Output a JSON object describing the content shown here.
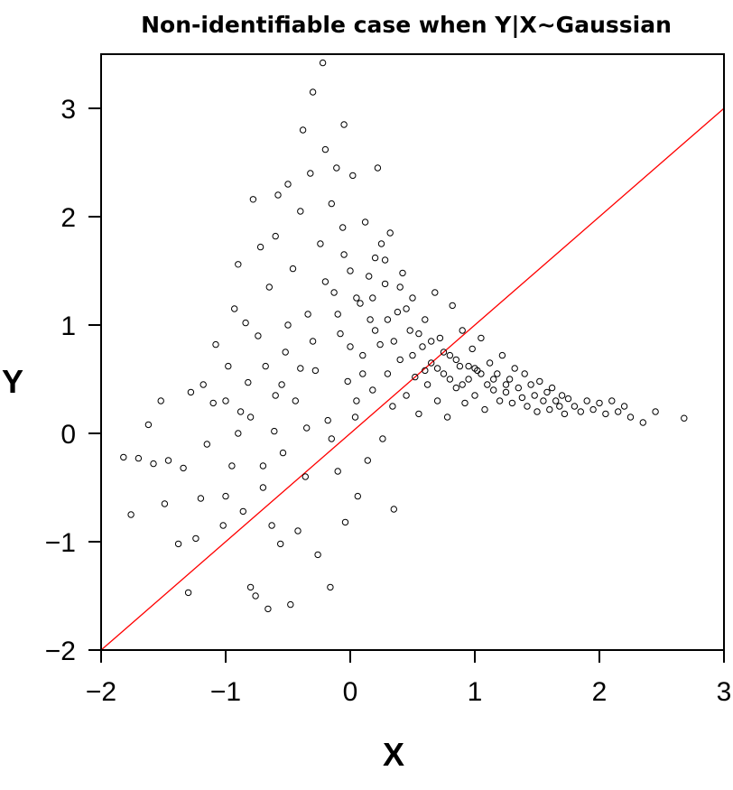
{
  "chart_data": {
    "type": "scatter",
    "title": "Non-identifiable case when Y|X~Gaussian",
    "xlabel": "X",
    "ylabel": "Y",
    "xlim": [
      -2,
      3.0
    ],
    "ylim": [
      -2,
      3.5
    ],
    "x_ticks": [
      -2,
      -1,
      0,
      1,
      2,
      3
    ],
    "y_ticks": [
      -2,
      -1,
      0,
      1,
      2,
      3
    ],
    "x_tick_labels": [
      "−2",
      "−1",
      "0",
      "1",
      "2",
      "3"
    ],
    "y_tick_labels": [
      "−2",
      "−1",
      "0",
      "1",
      "2",
      "3"
    ],
    "grid": false,
    "marker": "open-circle",
    "point_color": "#000000",
    "reference_line": {
      "slope": 1,
      "intercept": 0,
      "color": "#ff0000"
    },
    "series": [
      {
        "points": [
          [
            -1.82,
            -0.22
          ],
          [
            -1.76,
            -0.75
          ],
          [
            -1.7,
            -0.23
          ],
          [
            -1.62,
            0.08
          ],
          [
            -1.58,
            -0.28
          ],
          [
            -1.52,
            0.3
          ],
          [
            -1.49,
            -0.65
          ],
          [
            -1.46,
            -0.25
          ],
          [
            -1.38,
            -1.02
          ],
          [
            -1.34,
            -0.32
          ],
          [
            -1.3,
            -1.47
          ],
          [
            -1.28,
            0.38
          ],
          [
            -1.24,
            -0.97
          ],
          [
            -1.2,
            -0.6
          ],
          [
            -1.18,
            0.45
          ],
          [
            -1.15,
            -0.1
          ],
          [
            -1.1,
            0.28
          ],
          [
            -1.08,
            0.82
          ],
          [
            -1.02,
            -0.85
          ],
          [
            -1.0,
            -0.58
          ],
          [
            -0.98,
            0.62
          ],
          [
            -0.95,
            -0.3
          ],
          [
            -0.93,
            1.15
          ],
          [
            -0.9,
            1.56
          ],
          [
            -0.88,
            0.2
          ],
          [
            -0.86,
            -0.72
          ],
          [
            -0.84,
            1.02
          ],
          [
            -0.82,
            0.47
          ],
          [
            -0.8,
            -1.42
          ],
          [
            -0.78,
            2.16
          ],
          [
            -0.76,
            -1.5
          ],
          [
            -0.74,
            0.9
          ],
          [
            -0.72,
            1.72
          ],
          [
            -0.7,
            -0.5
          ],
          [
            -0.68,
            0.62
          ],
          [
            -0.66,
            -1.62
          ],
          [
            -0.65,
            1.35
          ],
          [
            -0.63,
            -0.85
          ],
          [
            -0.61,
            0.02
          ],
          [
            -0.6,
            1.82
          ],
          [
            -0.58,
            2.2
          ],
          [
            -0.56,
            -1.02
          ],
          [
            -0.54,
            -0.18
          ],
          [
            -0.52,
            0.75
          ],
          [
            -0.5,
            2.3
          ],
          [
            -0.48,
            -1.58
          ],
          [
            -0.46,
            1.52
          ],
          [
            -0.44,
            0.3
          ],
          [
            -0.42,
            -0.9
          ],
          [
            -0.4,
            2.05
          ],
          [
            -0.38,
            2.8
          ],
          [
            -0.36,
            -0.4
          ],
          [
            -0.34,
            1.1
          ],
          [
            -0.32,
            2.4
          ],
          [
            -0.3,
            3.15
          ],
          [
            -0.28,
            0.58
          ],
          [
            -0.26,
            -1.12
          ],
          [
            -0.24,
            1.75
          ],
          [
            -0.22,
            3.42
          ],
          [
            -0.2,
            2.62
          ],
          [
            -0.18,
            0.12
          ],
          [
            -0.16,
            -1.42
          ],
          [
            -0.15,
            2.12
          ],
          [
            -0.13,
            1.3
          ],
          [
            -0.11,
            2.45
          ],
          [
            -0.1,
            -0.35
          ],
          [
            -0.08,
            0.92
          ],
          [
            -0.06,
            1.9
          ],
          [
            -0.05,
            2.85
          ],
          [
            -0.04,
            -0.82
          ],
          [
            -0.02,
            0.48
          ],
          [
            0.0,
            1.5
          ],
          [
            0.02,
            2.38
          ],
          [
            0.04,
            0.15
          ],
          [
            0.06,
            -0.58
          ],
          [
            0.08,
            1.2
          ],
          [
            0.1,
            0.72
          ],
          [
            0.12,
            1.95
          ],
          [
            0.14,
            -0.25
          ],
          [
            0.16,
            1.05
          ],
          [
            0.18,
            0.4
          ],
          [
            0.2,
            1.62
          ],
          [
            0.22,
            2.45
          ],
          [
            0.24,
            0.82
          ],
          [
            0.26,
            -0.05
          ],
          [
            0.28,
            1.38
          ],
          [
            0.3,
            0.55
          ],
          [
            0.32,
            1.85
          ],
          [
            0.34,
            0.25
          ],
          [
            0.35,
            -0.7
          ],
          [
            0.38,
            1.12
          ],
          [
            0.4,
            0.68
          ],
          [
            0.42,
            1.48
          ],
          [
            0.45,
            0.35
          ],
          [
            0.48,
            0.95
          ],
          [
            0.5,
            1.25
          ],
          [
            0.52,
            0.52
          ],
          [
            0.55,
            0.18
          ],
          [
            0.58,
            0.8
          ],
          [
            0.6,
            1.05
          ],
          [
            0.62,
            0.45
          ],
          [
            0.65,
            0.65
          ],
          [
            0.68,
            1.3
          ],
          [
            0.7,
            0.3
          ],
          [
            0.72,
            0.88
          ],
          [
            0.75,
            0.55
          ],
          [
            0.78,
            0.15
          ],
          [
            0.8,
            0.72
          ],
          [
            0.82,
            1.18
          ],
          [
            0.85,
            0.42
          ],
          [
            0.88,
            0.62
          ],
          [
            0.9,
            0.95
          ],
          [
            0.92,
            0.28
          ],
          [
            0.95,
            0.5
          ],
          [
            0.98,
            0.78
          ],
          [
            1.0,
            0.35
          ],
          [
            1.02,
            0.58
          ],
          [
            1.05,
            0.88
          ],
          [
            1.08,
            0.22
          ],
          [
            1.1,
            0.45
          ],
          [
            1.12,
            0.65
          ],
          [
            1.15,
            0.4
          ],
          [
            1.18,
            0.55
          ],
          [
            1.2,
            0.3
          ],
          [
            1.22,
            0.72
          ],
          [
            1.25,
            0.38
          ],
          [
            1.28,
            0.5
          ],
          [
            1.3,
            0.28
          ],
          [
            1.32,
            0.6
          ],
          [
            1.35,
            0.42
          ],
          [
            1.38,
            0.33
          ],
          [
            1.4,
            0.55
          ],
          [
            1.42,
            0.25
          ],
          [
            1.45,
            0.45
          ],
          [
            1.48,
            0.35
          ],
          [
            1.5,
            0.2
          ],
          [
            1.52,
            0.48
          ],
          [
            1.55,
            0.3
          ],
          [
            1.58,
            0.38
          ],
          [
            1.6,
            0.22
          ],
          [
            1.62,
            0.42
          ],
          [
            1.65,
            0.3
          ],
          [
            1.68,
            0.25
          ],
          [
            1.7,
            0.35
          ],
          [
            1.72,
            0.18
          ],
          [
            1.75,
            0.32
          ],
          [
            1.8,
            0.25
          ],
          [
            1.85,
            0.2
          ],
          [
            1.9,
            0.3
          ],
          [
            1.95,
            0.22
          ],
          [
            2.0,
            0.28
          ],
          [
            2.05,
            0.18
          ],
          [
            2.1,
            0.3
          ],
          [
            2.15,
            0.2
          ],
          [
            2.2,
            0.25
          ],
          [
            2.25,
            0.15
          ],
          [
            2.35,
            0.1
          ],
          [
            2.45,
            0.2
          ],
          [
            2.68,
            0.14
          ],
          [
            -0.9,
            0.0
          ],
          [
            -0.7,
            -0.3
          ],
          [
            -0.55,
            0.45
          ],
          [
            -0.35,
            0.05
          ],
          [
            -0.15,
            -0.05
          ],
          [
            0.05,
            0.3
          ],
          [
            0.25,
            1.75
          ],
          [
            0.15,
            1.45
          ],
          [
            0.05,
            1.25
          ],
          [
            -0.05,
            1.65
          ],
          [
            0.2,
            0.95
          ],
          [
            0.3,
            1.05
          ],
          [
            0.45,
            1.15
          ],
          [
            0.55,
            0.92
          ],
          [
            0.65,
            0.85
          ],
          [
            0.75,
            0.75
          ],
          [
            0.85,
            0.68
          ],
          [
            0.95,
            0.62
          ],
          [
            1.05,
            0.55
          ],
          [
            1.15,
            0.5
          ],
          [
            1.25,
            0.45
          ],
          [
            0.1,
            0.55
          ],
          [
            0.0,
            0.8
          ],
          [
            -0.1,
            1.1
          ],
          [
            -0.2,
            1.4
          ],
          [
            -0.3,
            0.85
          ],
          [
            -0.4,
            0.6
          ],
          [
            -0.5,
            1.0
          ],
          [
            -0.6,
            0.35
          ],
          [
            -0.8,
            0.15
          ],
          [
            -1.0,
            0.3
          ],
          [
            0.35,
            0.85
          ],
          [
            0.5,
            0.72
          ],
          [
            0.6,
            0.58
          ],
          [
            0.7,
            0.6
          ],
          [
            0.8,
            0.5
          ],
          [
            0.9,
            0.45
          ],
          [
            1.0,
            0.6
          ],
          [
            0.4,
            1.35
          ],
          [
            0.28,
            1.6
          ],
          [
            0.18,
            1.25
          ]
        ]
      }
    ]
  }
}
